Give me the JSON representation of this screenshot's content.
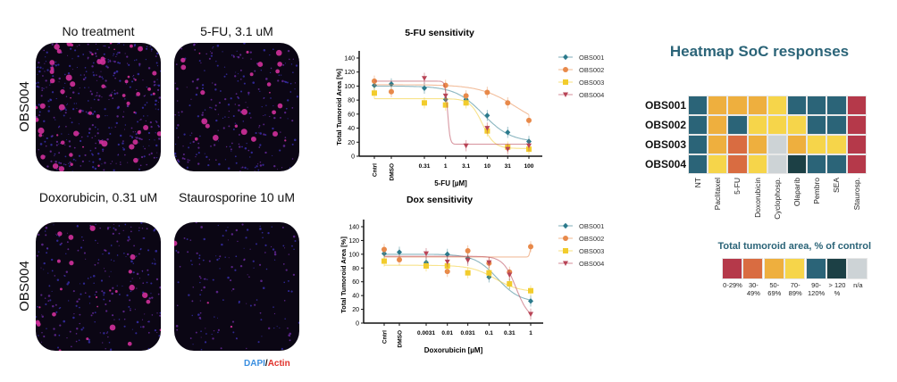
{
  "microscopy": {
    "row_label": "OBS004",
    "panels": [
      {
        "label": "No treatment",
        "stain_density": "high"
      },
      {
        "label": "5-FU, 3.1 uM",
        "stain_density": "medium"
      },
      {
        "label": "Doxorubicin, 0.31 uM",
        "stain_density": "medium"
      },
      {
        "label": "Staurosporine 10 uM",
        "stain_density": "low"
      }
    ],
    "stain_legend": {
      "dapi": "DAPI",
      "sep": "/",
      "actin": "Actin",
      "dapi_color": "#3b8fe0",
      "actin_color": "#e0302a"
    }
  },
  "colors": {
    "OBS001": "#2b7a8c",
    "OBS002": "#e8894a",
    "OBS003": "#f2cc2c",
    "OBS004": "#b84456"
  },
  "chart_data": [
    {
      "type": "line",
      "title": "5-FU sensitivity",
      "xlabel": "5-FU [µM]",
      "ylabel": "Total Tumoroid Area [%]",
      "categories": [
        "Cntrl",
        "DMSO",
        "0.31",
        "1",
        "3.1",
        "10",
        "31",
        "100"
      ],
      "x_scale": "log (with Cntrl and DMSO as separate categories)",
      "ylim": [
        0,
        140
      ],
      "yticks": [
        0,
        20,
        40,
        60,
        80,
        100,
        120,
        140
      ],
      "legend": "right",
      "series": [
        {
          "name": "OBS001",
          "marker": "diamond",
          "values": [
            101,
            103,
            97,
            81,
            81,
            58,
            34,
            21
          ]
        },
        {
          "name": "OBS002",
          "marker": "circle",
          "values": [
            107,
            92,
            null,
            101,
            86,
            91,
            76,
            51
          ]
        },
        {
          "name": "OBS003",
          "marker": "square",
          "values": [
            90,
            null,
            76,
            73,
            76,
            36,
            13,
            10
          ]
        },
        {
          "name": "OBS004",
          "marker": "triangle-down",
          "values": [
            null,
            null,
            111,
            86,
            15,
            40,
            10,
            15
          ]
        }
      ]
    },
    {
      "type": "line",
      "title": "Dox sensitivity",
      "xlabel": "Doxorubicin [µM]",
      "ylabel": "Total Tumoroid Area [%]",
      "categories": [
        "Cntrl",
        "DMSO",
        "0.0031",
        "0.01",
        "0.031",
        "0.1",
        "0.31",
        "1"
      ],
      "x_scale": "log (with Cntrl and DMSO as separate categories)",
      "ylim": [
        0,
        140
      ],
      "yticks": [
        0,
        20,
        40,
        60,
        80,
        100,
        120,
        140
      ],
      "legend": "right",
      "series": [
        {
          "name": "OBS001",
          "marker": "diamond",
          "values": [
            101,
            103,
            88,
            100,
            94,
            67,
            57,
            32
          ]
        },
        {
          "name": "OBS002",
          "marker": "circle",
          "values": [
            107,
            92,
            null,
            75,
            105,
            87,
            74,
            111
          ]
        },
        {
          "name": "OBS003",
          "marker": "square",
          "values": [
            90,
            null,
            83,
            83,
            73,
            73,
            57,
            47
          ]
        },
        {
          "name": "OBS004",
          "marker": "triangle-down",
          "values": [
            null,
            null,
            101,
            89,
            91,
            88,
            70,
            13
          ]
        }
      ]
    },
    {
      "type": "heatmap",
      "title": "Heatmap SoC responses",
      "rows": [
        "OBS001",
        "OBS002",
        "OBS003",
        "OBS004"
      ],
      "columns": [
        "NT",
        "Paclitaxel",
        "5-FU",
        "Doxorubicin",
        "Cyclophosp.",
        "Olaparib",
        "Pembro",
        "SEA",
        "Staurosp."
      ],
      "values": [
        [
          "90-120%",
          "50-69%",
          "50-69%",
          "50-69%",
          "70-89%",
          "90-120%",
          "90-120%",
          "90-120%",
          "0-29%"
        ],
        [
          "90-120%",
          "50-69%",
          "90-120%",
          "70-89%",
          "70-89%",
          "70-89%",
          "90-120%",
          "90-120%",
          "0-29%"
        ],
        [
          "90-120%",
          "50-69%",
          "30-49%",
          "50-69%",
          "n/a",
          "50-69%",
          "70-89%",
          "70-89%",
          "0-29%"
        ],
        [
          "90-120%",
          "70-89%",
          "30-49%",
          "70-89%",
          "n/a",
          "> 120 %",
          "90-120%",
          "90-120%",
          "0-29%"
        ]
      ],
      "legend_title": "Total tumoroid area, % of control",
      "legend": [
        {
          "label": "0-29%",
          "color": "#b5394a"
        },
        {
          "label": "30-49%",
          "color": "#d96c41"
        },
        {
          "label": "50-69%",
          "color": "#eeaf3e"
        },
        {
          "label": "70-89%",
          "color": "#f6d54a"
        },
        {
          "label": "90-120%",
          "color": "#2b6478"
        },
        {
          "label": "> 120 %",
          "color": "#1c4045"
        },
        {
          "label": "n/a",
          "color": "#cdd3d6"
        }
      ]
    }
  ]
}
